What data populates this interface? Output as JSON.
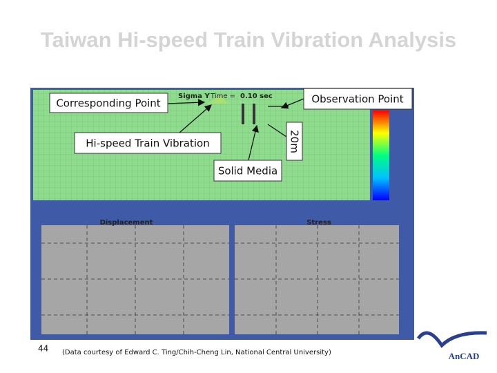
{
  "header": {
    "title": "Taiwan Hi-speed Train Vibration Analysis"
  },
  "figure": {
    "simulation": {
      "result_label": "Sigma Y",
      "time_label": "Time =",
      "time_value": "0.10 sec"
    },
    "callouts": [
      "Corresponding Point",
      "Observation Point",
      "Hi-speed Train Vibration",
      "20m",
      "Solid Media"
    ],
    "plots": [
      "Displacement",
      "Stress"
    ]
  },
  "footer": {
    "page_number": "44",
    "credit": "(Data courtesy of Edward C. Ting/Chih-Cheng Lin, National Central University)",
    "logo": "AnCAD"
  }
}
